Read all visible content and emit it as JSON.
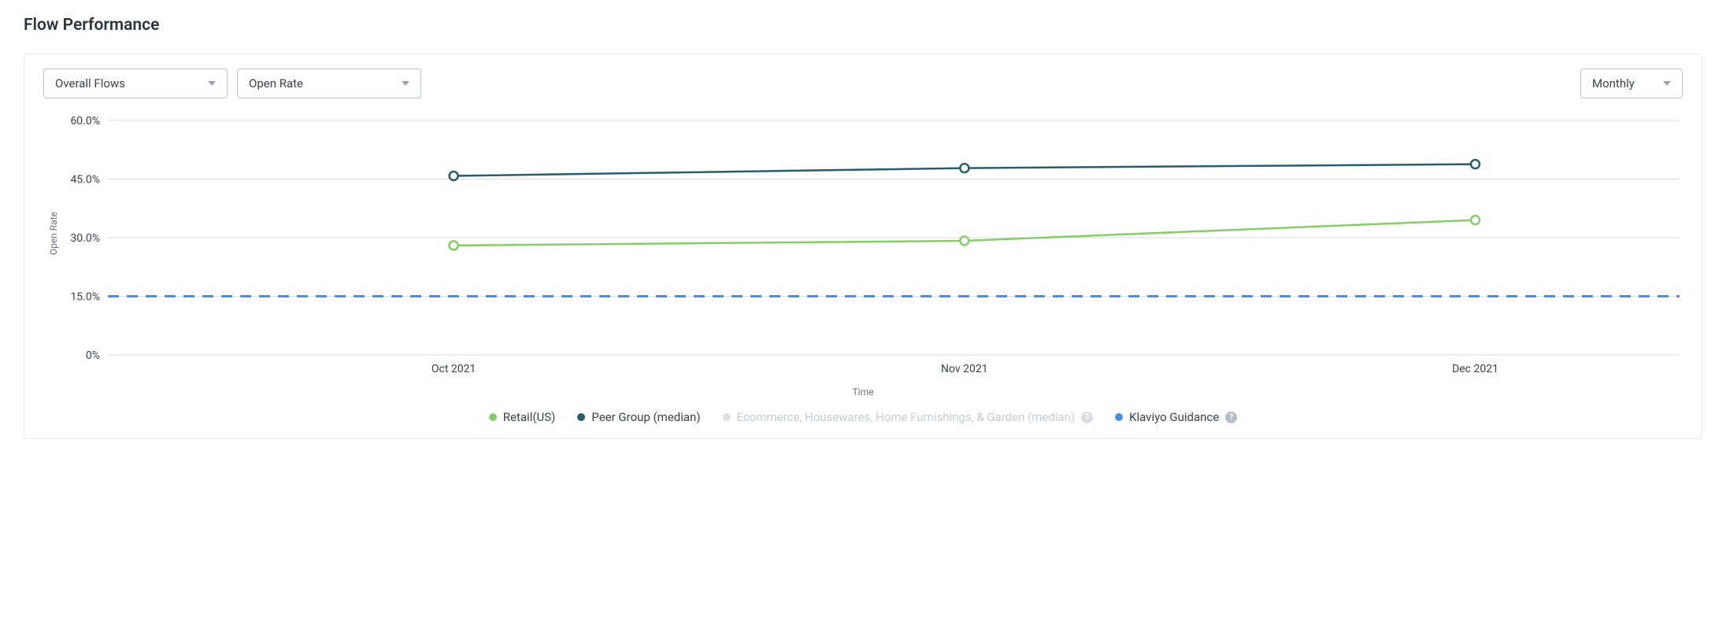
{
  "title": "Flow Performance",
  "controls": {
    "flow_select": "Overall Flows",
    "metric_select": "Open Rate",
    "period_select": "Monthly"
  },
  "chart": {
    "type": "line",
    "ylabel": "Open Rate",
    "xlabel": "Time",
    "ylim": [
      0,
      60
    ],
    "yticks": [
      0,
      15,
      30,
      45,
      60
    ],
    "ytick_labels": [
      "0%",
      "15.0%",
      "30.0%",
      "45.0%",
      "60.0%"
    ],
    "categories": [
      "Oct 2021",
      "Nov 2021",
      "Dec 2021"
    ],
    "background_color": "#ffffff",
    "grid_color": "#d7dce2",
    "tick_fontsize": 14,
    "label_fontsize": 12,
    "marker_radius": 5.5,
    "line_width": 2.5,
    "series": [
      {
        "name": "Retail(US)",
        "color": "#88cc6a",
        "marker_fill": "#ffffff",
        "values": [
          28.0,
          29.2,
          34.5
        ]
      },
      {
        "name": "Peer Group (median)",
        "color": "#2a5d6c",
        "marker_fill": "#ffffff",
        "values": [
          45.8,
          47.8,
          48.8
        ]
      }
    ],
    "guidance": {
      "name": "Klaviyo Guidance",
      "color": "#4a90d9",
      "value": 15.0,
      "dash": "14,10",
      "line_width": 3
    },
    "disabled_series": {
      "name": "Ecommerce, Housewares, Home Furnishings, & Garden (median)",
      "color": "#dbdfe5"
    }
  },
  "legend": {
    "items": [
      {
        "label": "Retail(US)",
        "color": "#88cc6a",
        "interactive": true,
        "disabled": false,
        "help": false
      },
      {
        "label": "Peer Group (median)",
        "color": "#2a5d6c",
        "interactive": true,
        "disabled": false,
        "help": false
      },
      {
        "label": "Ecommerce, Housewares, Home Furnishings, & Garden (median)",
        "color": "#dbdfe5",
        "interactive": true,
        "disabled": true,
        "help": true
      },
      {
        "label": "Klaviyo Guidance",
        "color": "#4a90d9",
        "interactive": true,
        "disabled": false,
        "help": true
      }
    ]
  }
}
